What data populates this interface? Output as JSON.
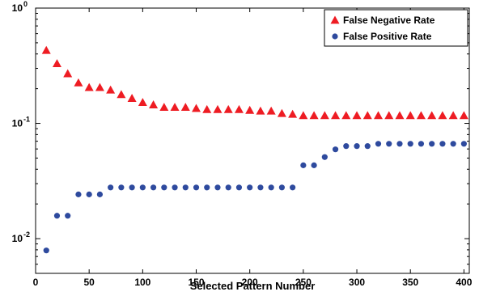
{
  "chart_data": {
    "type": "scatter",
    "xlabel": "Selected Pattern Number",
    "ylabel": "",
    "xlim": [
      0,
      405
    ],
    "ylim": [
      0.005,
      1
    ],
    "yscale": "log",
    "grid": false,
    "legend_position": "top-right",
    "x_ticks": [
      0,
      50,
      100,
      150,
      200,
      250,
      300,
      350,
      400
    ],
    "y_ticks": [
      {
        "value": 0.01,
        "base": "10",
        "exp": "-2"
      },
      {
        "value": 0.1,
        "base": "10",
        "exp": "-1"
      },
      {
        "value": 1,
        "base": "10",
        "exp": "0"
      }
    ],
    "series": [
      {
        "name": "False Negative Rate",
        "marker": "triangle",
        "color": "#ee1c23",
        "x": [
          10,
          20,
          30,
          40,
          50,
          60,
          70,
          80,
          90,
          100,
          110,
          120,
          130,
          140,
          150,
          160,
          170,
          180,
          190,
          200,
          210,
          220,
          230,
          240,
          250,
          260,
          270,
          280,
          290,
          300,
          310,
          320,
          330,
          340,
          350,
          360,
          370,
          380,
          390,
          400
        ],
        "y": [
          0.43,
          0.33,
          0.27,
          0.225,
          0.205,
          0.205,
          0.195,
          0.178,
          0.165,
          0.152,
          0.145,
          0.138,
          0.138,
          0.138,
          0.135,
          0.132,
          0.132,
          0.132,
          0.132,
          0.13,
          0.128,
          0.128,
          0.122,
          0.12,
          0.117,
          0.117,
          0.117,
          0.117,
          0.117,
          0.117,
          0.117,
          0.117,
          0.117,
          0.117,
          0.117,
          0.117,
          0.117,
          0.117,
          0.117,
          0.117
        ]
      },
      {
        "name": "False Positive Rate",
        "marker": "circle",
        "color": "#2e4a9e",
        "x": [
          10,
          20,
          30,
          40,
          50,
          60,
          70,
          80,
          90,
          100,
          110,
          120,
          130,
          140,
          150,
          160,
          170,
          180,
          190,
          200,
          210,
          220,
          230,
          240,
          250,
          260,
          270,
          280,
          290,
          300,
          310,
          320,
          330,
          340,
          350,
          360,
          370,
          380,
          390,
          400
        ],
        "y": [
          0.0079,
          0.0158,
          0.0158,
          0.0242,
          0.0242,
          0.0242,
          0.0278,
          0.0278,
          0.0278,
          0.0278,
          0.0278,
          0.0278,
          0.0278,
          0.0278,
          0.0278,
          0.0278,
          0.0278,
          0.0278,
          0.0278,
          0.0278,
          0.0278,
          0.0278,
          0.0278,
          0.0278,
          0.0433,
          0.0433,
          0.051,
          0.0595,
          0.0635,
          0.0635,
          0.0635,
          0.0665,
          0.0665,
          0.0665,
          0.0665,
          0.0665,
          0.0665,
          0.0665,
          0.0665,
          0.0665
        ]
      }
    ]
  }
}
